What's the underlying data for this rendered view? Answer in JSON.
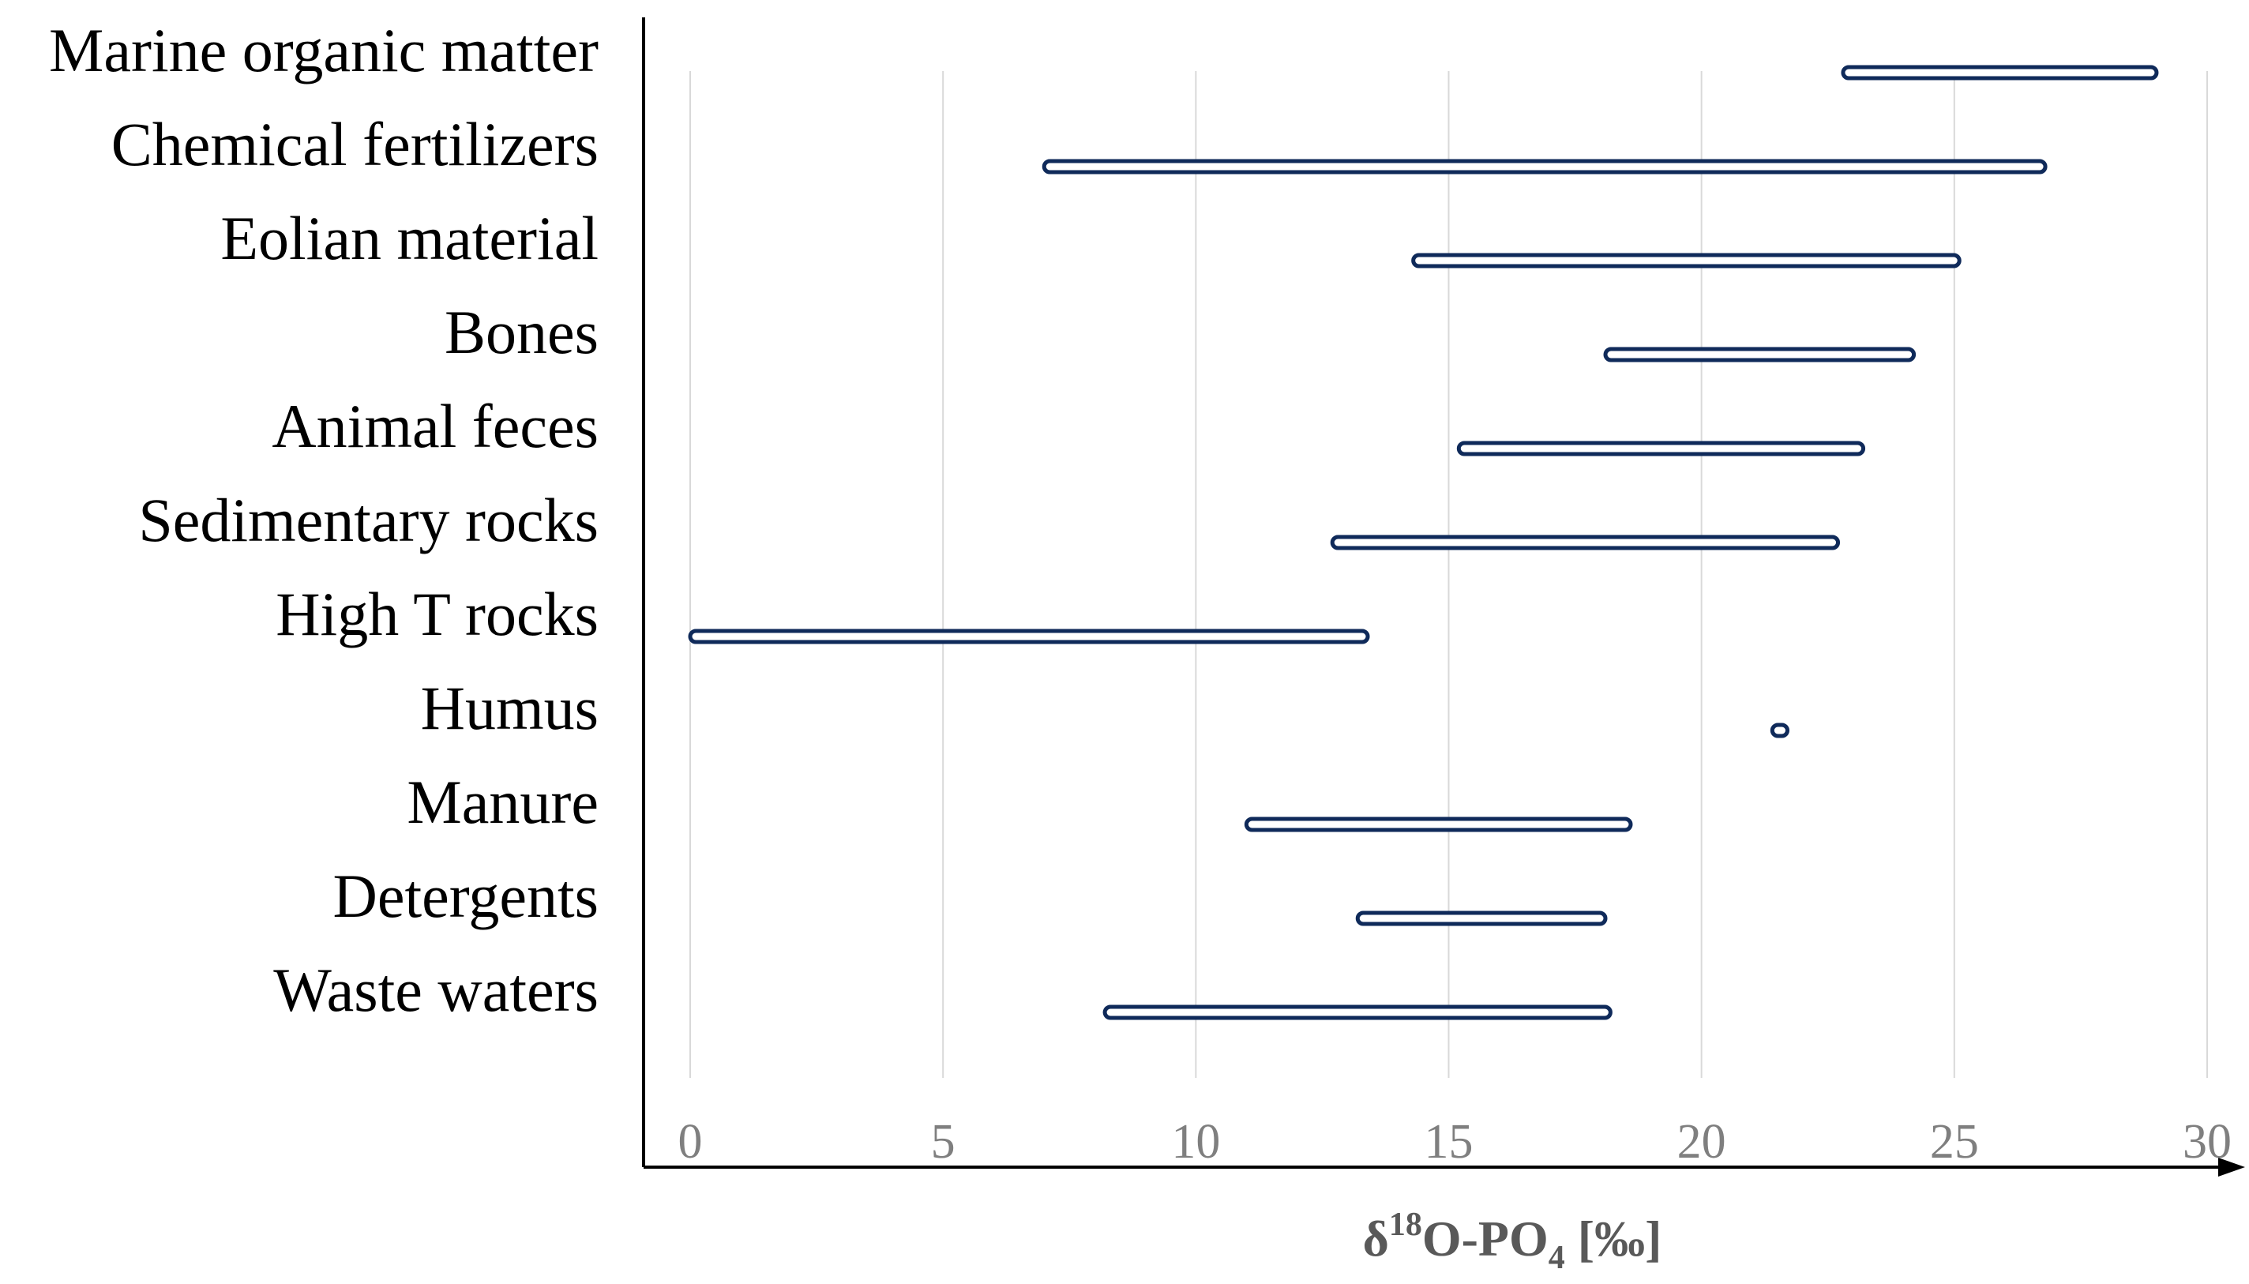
{
  "chart_data": {
    "type": "range-bar",
    "title": "",
    "xlabel": {
      "prefix": "δ",
      "sup": "18",
      "mid": "O-PO",
      "sub": "4",
      "suffix": " [‰]"
    },
    "ylabel": "",
    "xlim": [
      0,
      30
    ],
    "xticks": [
      0,
      5,
      10,
      15,
      20,
      25,
      30
    ],
    "grid": true,
    "categories": [
      "Marine organic matter",
      "Chemical fertilizers",
      "Eolian material",
      "Bones",
      "Animal feces",
      "Sedimentary rocks",
      "High T rocks",
      "Humus",
      "Manure",
      "Detergents",
      "Waste waters"
    ],
    "series": [
      {
        "name": "δ18O-PO4 range",
        "ranges": [
          [
            22.8,
            29.0
          ],
          [
            7.0,
            26.8
          ],
          [
            14.3,
            25.1
          ],
          [
            18.1,
            24.2
          ],
          [
            15.2,
            23.2
          ],
          [
            12.7,
            22.7
          ],
          [
            0.0,
            13.4
          ],
          [
            21.4,
            21.7
          ],
          [
            11.0,
            18.6
          ],
          [
            13.2,
            18.1
          ],
          [
            8.2,
            18.2
          ]
        ]
      }
    ],
    "colors": {
      "bar_outline": "#0f2a5a",
      "bar_fill": "#ffffff",
      "grid": "#d9d9d9",
      "axis": "#000000",
      "tick_label": "#7f7f7f",
      "axis_title": "#595959"
    }
  }
}
